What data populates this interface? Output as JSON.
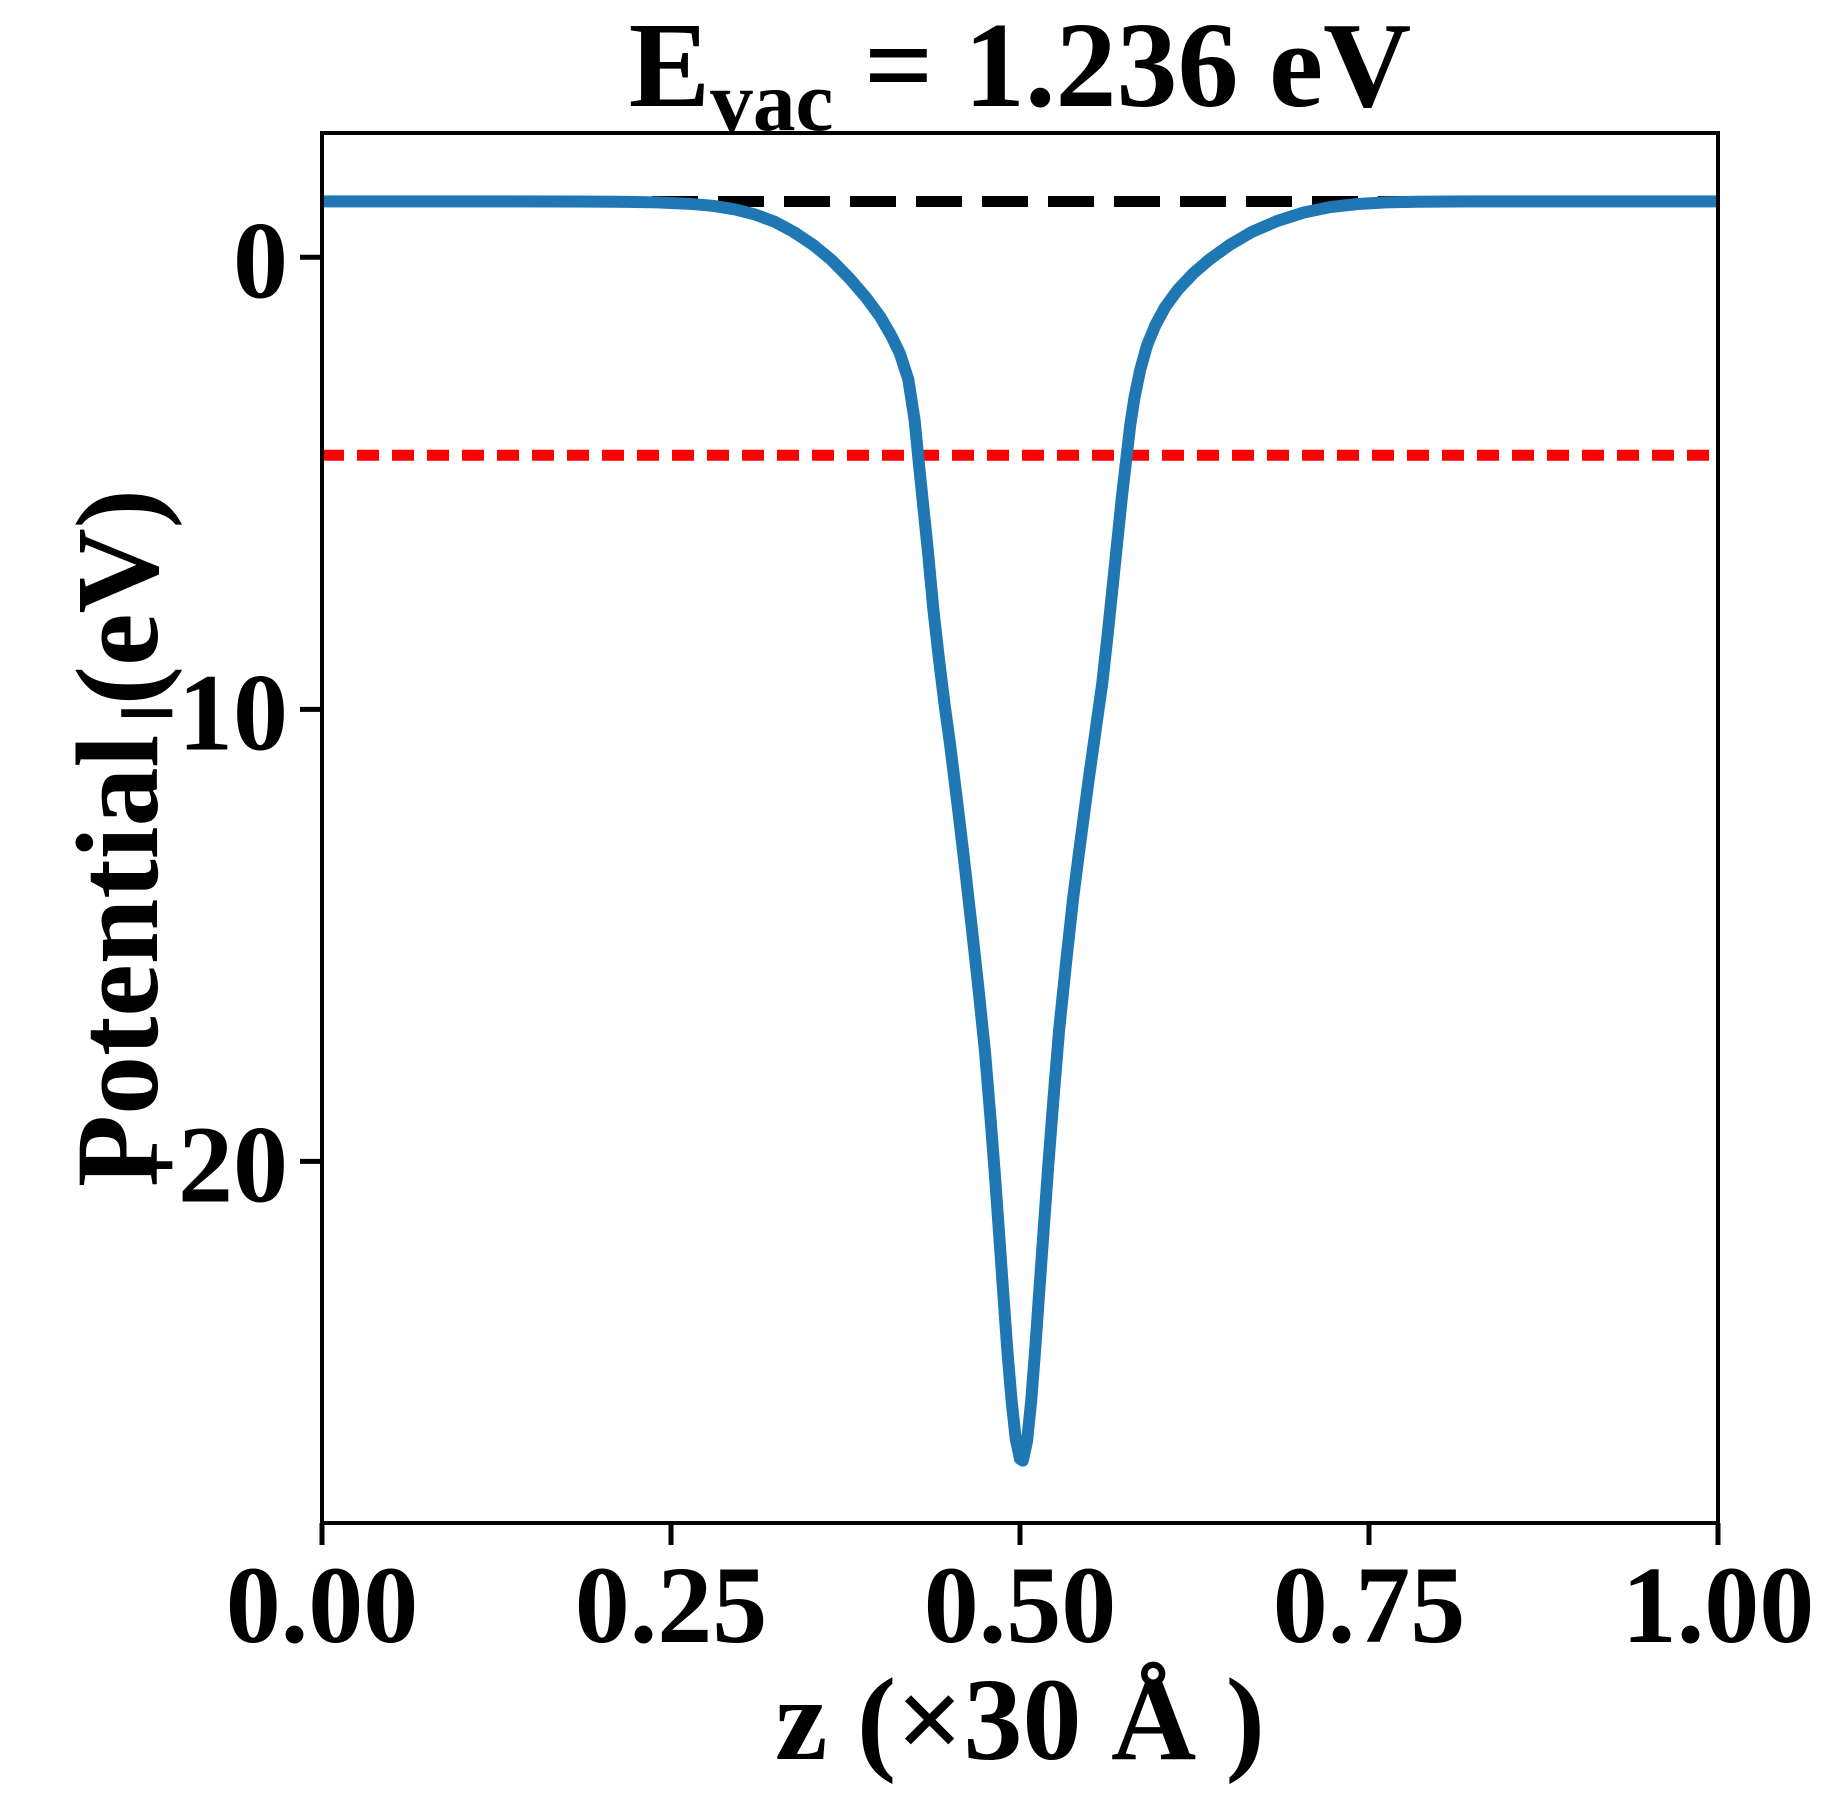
{
  "title_display": "E_vac = 1.236 eV",
  "chart_data": {
    "type": "line",
    "title": "E_vac = 1.236 eV",
    "title_parts": {
      "base": "E",
      "sub": "vac",
      "rest": " = 1.236 eV"
    },
    "xlabel": "z (×30 Å )",
    "ylabel": "Potential (eV)",
    "xlim": [
      0,
      1
    ],
    "ylim": [
      -28.0,
      2.75
    ],
    "grid": false,
    "legend": "none",
    "xticks": {
      "values": [
        0,
        0.25,
        0.5,
        0.75,
        1.0
      ],
      "labels": [
        "0.00",
        "0.25",
        "0.50",
        "0.75",
        "1.00"
      ]
    },
    "yticks": {
      "values": [
        0,
        -10,
        -20
      ],
      "labels": [
        "0",
        "−10",
        "−20"
      ]
    },
    "series": [
      {
        "name": "planar-averaged-potential",
        "type": "curve",
        "color": "#1f77b4",
        "line_style": "solid",
        "line_width": 12,
        "points": [
          [
            0.0,
            1.236
          ],
          [
            0.06,
            1.236
          ],
          [
            0.12,
            1.236
          ],
          [
            0.18,
            1.235
          ],
          [
            0.21,
            1.23
          ],
          [
            0.24,
            1.215
          ],
          [
            0.262,
            1.185
          ],
          [
            0.28,
            1.14
          ],
          [
            0.296,
            1.06
          ],
          [
            0.31,
            0.95
          ],
          [
            0.324,
            0.79
          ],
          [
            0.338,
            0.56
          ],
          [
            0.352,
            0.27
          ],
          [
            0.365,
            -0.06
          ],
          [
            0.378,
            -0.47
          ],
          [
            0.39,
            -0.9
          ],
          [
            0.4,
            -1.32
          ],
          [
            0.408,
            -1.75
          ],
          [
            0.414,
            -2.13
          ],
          [
            0.42,
            -2.7
          ],
          [
            0.4245,
            -3.6
          ],
          [
            0.428,
            -4.7
          ],
          [
            0.431,
            -5.6
          ],
          [
            0.434,
            -6.5
          ],
          [
            0.438,
            -7.8
          ],
          [
            0.442,
            -8.9
          ],
          [
            0.446,
            -9.9
          ],
          [
            0.45,
            -10.8
          ],
          [
            0.455,
            -12.05
          ],
          [
            0.46,
            -13.35
          ],
          [
            0.465,
            -14.7
          ],
          [
            0.47,
            -16.1
          ],
          [
            0.475,
            -17.6
          ],
          [
            0.479,
            -19.1
          ],
          [
            0.482,
            -20.3
          ],
          [
            0.485,
            -21.6
          ],
          [
            0.488,
            -22.9
          ],
          [
            0.491,
            -24.2
          ],
          [
            0.494,
            -25.3
          ],
          [
            0.497,
            -26.15
          ],
          [
            0.5,
            -26.58
          ],
          [
            0.502,
            -26.62
          ],
          [
            0.505,
            -26.2
          ],
          [
            0.508,
            -25.3
          ],
          [
            0.511,
            -24.1
          ],
          [
            0.514,
            -22.8
          ],
          [
            0.517,
            -21.5
          ],
          [
            0.52,
            -20.2
          ],
          [
            0.524,
            -18.6
          ],
          [
            0.528,
            -17.1
          ],
          [
            0.533,
            -15.6
          ],
          [
            0.538,
            -14.2
          ],
          [
            0.543,
            -13.0
          ],
          [
            0.549,
            -11.6
          ],
          [
            0.554,
            -10.5
          ],
          [
            0.559,
            -9.4
          ],
          [
            0.563,
            -8.3
          ],
          [
            0.567,
            -7.1
          ],
          [
            0.57,
            -6.2
          ],
          [
            0.573,
            -5.3
          ],
          [
            0.576,
            -4.5
          ],
          [
            0.579,
            -3.7
          ],
          [
            0.582,
            -3.1
          ],
          [
            0.586,
            -2.5
          ],
          [
            0.591,
            -1.95
          ],
          [
            0.597,
            -1.5
          ],
          [
            0.604,
            -1.1
          ],
          [
            0.613,
            -0.72
          ],
          [
            0.624,
            -0.36
          ],
          [
            0.636,
            -0.04
          ],
          [
            0.65,
            0.27
          ],
          [
            0.666,
            0.56
          ],
          [
            0.684,
            0.8
          ],
          [
            0.703,
            0.99
          ],
          [
            0.722,
            1.11
          ],
          [
            0.742,
            1.18
          ],
          [
            0.762,
            1.215
          ],
          [
            0.785,
            1.23
          ],
          [
            0.82,
            1.236
          ],
          [
            0.9,
            1.236
          ],
          [
            1.0,
            1.236
          ]
        ]
      },
      {
        "name": "vacuum-level",
        "type": "hline",
        "y": 1.236,
        "color": "#000000",
        "line_style": "dashed",
        "line_width": 11,
        "dash": [
          46,
          20
        ]
      },
      {
        "name": "fermi-level",
        "type": "hline",
        "y": -4.38,
        "color": "#ff0000",
        "line_style": "dashed",
        "line_width": 11,
        "dash": [
          22,
          13
        ]
      }
    ]
  },
  "colors": {
    "curve": "#1f77b4",
    "vacuum_line": "#000000",
    "fermi_line": "#ff0000",
    "text": "#000000",
    "background": "#ffffff",
    "spine": "#000000"
  }
}
